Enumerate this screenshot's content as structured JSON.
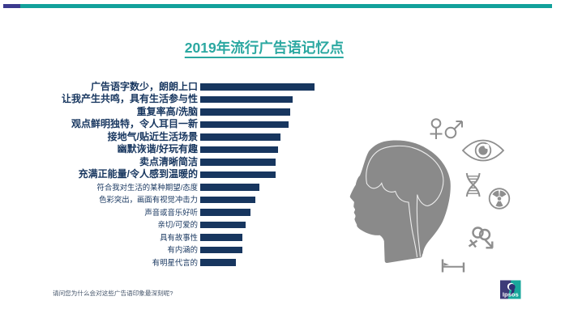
{
  "slide": {
    "title": "2019年流行广告语记忆点",
    "footnote": "请问您为什么会对这些广告语印象最深刻呢?",
    "logo_text": "Ipsos"
  },
  "colors": {
    "bar_navy": "#17365F",
    "title_teal": "#2BA8A1",
    "accent_teal": "#12A19B",
    "accent_purple": "#3B3A8E",
    "footnote_navy": "#44546A",
    "illustration_gray": "#8A8A8A",
    "icon_gray": "#8E8E8E",
    "logo_indigo": "#3E3B78",
    "logo_teal": "#18A79B"
  },
  "chart_data": {
    "type": "bar",
    "orientation": "horizontal",
    "title": "2019年流行广告语记忆点",
    "categories": [
      "广告语字数少，朗朗上口",
      "让我产生共鸣，具有生活参与性",
      "重复率高/洗脑",
      "观点鲜明独特，令人耳目一新",
      "接地气/贴近生活场景",
      "幽默诙谐/好玩有趣",
      "卖点清晰简洁",
      "充满正能量/令人感到温暖的",
      "符合我对生活的某种期望/态度",
      "色彩突出，画面有视觉冲击力",
      "声音或音乐好听",
      "亲切/可爱的",
      "具有故事性",
      "有内涵的",
      "有明星代言的"
    ],
    "values": [
      100,
      81,
      79,
      77,
      70,
      68,
      66,
      66,
      52,
      48,
      44,
      40,
      37,
      37,
      31
    ],
    "unit": "relative bar length, max = 100 (no numeric data labels shown)",
    "emphasized_rows": 8,
    "bar_color": "#17365F",
    "xlabel": "",
    "ylabel": "",
    "grid": false,
    "legend": false,
    "axis_shown": false
  },
  "illustration": {
    "name": "head-profile-with-brain",
    "icons": [
      "female-male",
      "eye",
      "dna",
      "radiation",
      "couple",
      "measure"
    ]
  }
}
